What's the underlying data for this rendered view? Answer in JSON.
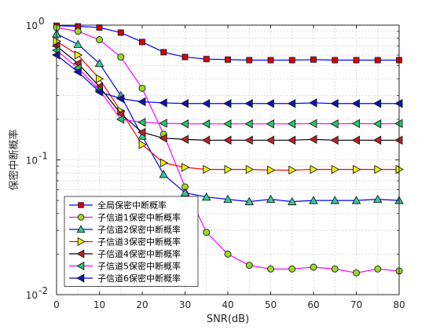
{
  "chart_data": {
    "type": "line",
    "xlabel": "SNR(dB)",
    "ylabel": "保密中断概率",
    "xlim": [
      0,
      80
    ],
    "ylim": [
      0.01,
      1
    ],
    "yscale": "log",
    "grid": true,
    "legend_position": "bottom-left",
    "x_ticks": [
      "0",
      "10",
      "20",
      "30",
      "40",
      "50",
      "60",
      "70",
      "80"
    ],
    "y_ticks": [
      {
        "base": "10",
        "exp": "0"
      },
      {
        "base": "10",
        "exp": "-1"
      },
      {
        "base": "10",
        "exp": "-2"
      }
    ],
    "x": [
      0,
      5,
      10,
      15,
      20,
      25,
      30,
      35,
      40,
      45,
      50,
      55,
      60,
      65,
      70,
      75,
      80
    ],
    "series": [
      {
        "name": "全局保密中断概率",
        "color": "#0000ff",
        "marker": "square",
        "marker_fill": "#dd0000",
        "values": [
          0.99,
          0.98,
          0.96,
          0.88,
          0.75,
          0.63,
          0.58,
          0.56,
          0.555,
          0.55,
          0.55,
          0.55,
          0.555,
          0.55,
          0.55,
          0.55,
          0.55
        ]
      },
      {
        "name": "子信道1保密中断概率",
        "color": "#ff00ff",
        "marker": "circle",
        "marker_fill": "#99dd22",
        "values": [
          0.96,
          0.9,
          0.78,
          0.58,
          0.34,
          0.155,
          0.063,
          0.029,
          0.02,
          0.0165,
          0.0155,
          0.0155,
          0.016,
          0.0155,
          0.0145,
          0.0155,
          0.015
        ]
      },
      {
        "name": "子信道2保密中断概率",
        "color": "#0000ff",
        "marker": "triangle-up",
        "marker_fill": "#33cc99",
        "values": [
          0.86,
          0.72,
          0.52,
          0.3,
          0.15,
          0.078,
          0.057,
          0.053,
          0.051,
          0.049,
          0.051,
          0.049,
          0.05,
          0.05,
          0.05,
          0.051,
          0.05
        ]
      },
      {
        "name": "子信道3保密中断概率",
        "color": "#ff0000",
        "marker": "triangle-right",
        "marker_fill": "#eeee00",
        "values": [
          0.76,
          0.6,
          0.4,
          0.23,
          0.13,
          0.095,
          0.088,
          0.085,
          0.085,
          0.085,
          0.084,
          0.084,
          0.085,
          0.085,
          0.085,
          0.085,
          0.085
        ]
      },
      {
        "name": "子信道4保密中断概率",
        "color": "#000000",
        "marker": "triangle-left",
        "marker_fill": "#bb2222",
        "values": [
          0.7,
          0.52,
          0.35,
          0.22,
          0.16,
          0.145,
          0.142,
          0.14,
          0.14,
          0.14,
          0.14,
          0.14,
          0.142,
          0.14,
          0.14,
          0.14,
          0.14
        ]
      },
      {
        "name": "子信道5保密中断概率",
        "color": "#ff00ff",
        "marker": "triangle-left",
        "marker_fill": "#22cc66",
        "values": [
          0.65,
          0.48,
          0.33,
          0.2,
          0.19,
          0.187,
          0.185,
          0.185,
          0.185,
          0.185,
          0.185,
          0.185,
          0.186,
          0.185,
          0.186,
          0.185,
          0.186
        ]
      },
      {
        "name": "子信道6保密中断概率",
        "color": "#0000ff",
        "marker": "triangle-left",
        "marker_fill": "#1111bb",
        "values": [
          0.6,
          0.45,
          0.32,
          0.285,
          0.27,
          0.265,
          0.262,
          0.262,
          0.262,
          0.262,
          0.262,
          0.262,
          0.265,
          0.262,
          0.262,
          0.262,
          0.262
        ]
      }
    ]
  }
}
